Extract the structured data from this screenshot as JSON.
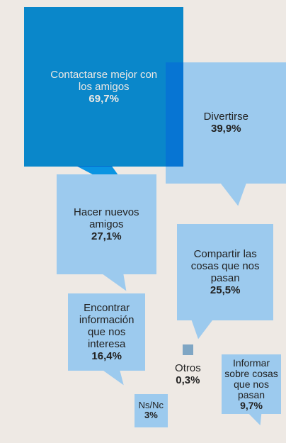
{
  "chart_data": {
    "type": "bubble",
    "categories": [
      "Contactarse mejor con los amigos",
      "Divertirse",
      "Hacer nuevos amigos",
      "Compartir las cosas que nos pasan",
      "Encontrar información que nos interesa",
      "Otros",
      "Informar sobre cosas que nos pasan",
      "Ns/Nc"
    ],
    "values": [
      69.7,
      39.9,
      27.1,
      25.5,
      16.4,
      0.3,
      9.7,
      3
    ],
    "value_labels": [
      "69,7%",
      "39,9%",
      "27,1%",
      "25,5%",
      "16,4%",
      "0,3%",
      "9,7%",
      "3%"
    ],
    "colors": [
      "#0a94e2",
      "#9ccaee",
      "#9ccaee",
      "#9ccaee",
      "#9ccaee",
      "#7fa6c4",
      "#9ccaee",
      "#9ccaee"
    ]
  }
}
